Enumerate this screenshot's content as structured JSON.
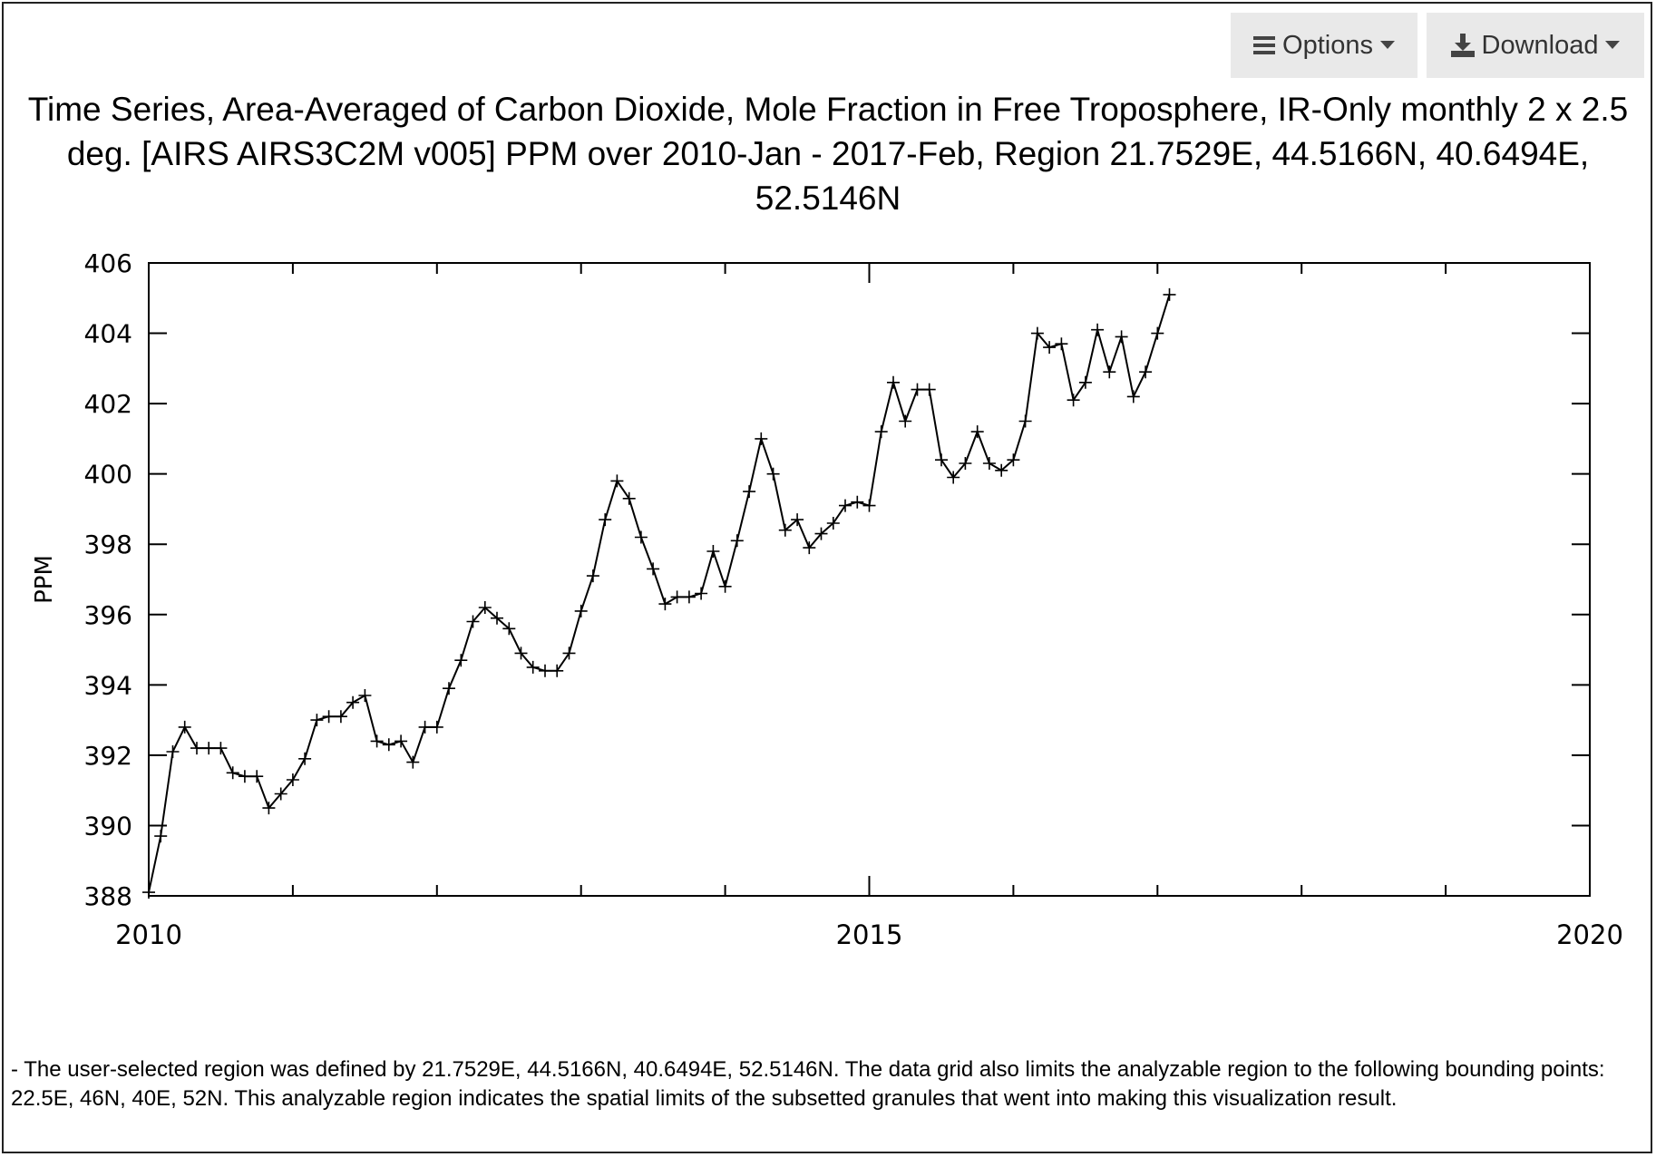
{
  "toolbar": {
    "options_label": "Options",
    "download_label": "Download",
    "options_icon": "menu-icon",
    "download_icon": "download-icon",
    "caret_icon": "caret-down-icon"
  },
  "chart_data": {
    "type": "line",
    "title": "Time Series, Area-Averaged of Carbon Dioxide, Mole Fraction in Free Troposphere, IR-Only monthly 2 x 2.5 deg. [AIRS AIRS3C2M v005] PPM over 2010-Jan - 2017-Feb, Region 21.7529E, 44.5166N, 40.6494E, 52.5146N",
    "xlabel": "",
    "ylabel": "PPM",
    "xlim": [
      2010,
      2020
    ],
    "ylim": [
      388,
      406
    ],
    "x_ticks": [
      2010,
      2015,
      2020
    ],
    "y_ticks": [
      388,
      390,
      392,
      394,
      396,
      398,
      400,
      402,
      404,
      406
    ],
    "grid": false,
    "marker": "plus",
    "line_color": "#000000",
    "series": [
      {
        "x": [
          "2010-01",
          "2010-02",
          "2010-03",
          "2010-04",
          "2010-05",
          "2010-06",
          "2010-07",
          "2010-08",
          "2010-09",
          "2010-10",
          "2010-11",
          "2010-12",
          "2011-01",
          "2011-02",
          "2011-03",
          "2011-04",
          "2011-05",
          "2011-06",
          "2011-07",
          "2011-08",
          "2011-09",
          "2011-10",
          "2011-11",
          "2011-12",
          "2012-01",
          "2012-02",
          "2012-03",
          "2012-04",
          "2012-05",
          "2012-06",
          "2012-07",
          "2012-08",
          "2012-09",
          "2012-10",
          "2012-11",
          "2012-12",
          "2013-01",
          "2013-02",
          "2013-03",
          "2013-04",
          "2013-05",
          "2013-06",
          "2013-07",
          "2013-08",
          "2013-09",
          "2013-10",
          "2013-11",
          "2013-12",
          "2014-01",
          "2014-02",
          "2014-03",
          "2014-04",
          "2014-05",
          "2014-06",
          "2014-07",
          "2014-08",
          "2014-09",
          "2014-10",
          "2014-11",
          "2014-12",
          "2015-01",
          "2015-02",
          "2015-03",
          "2015-04",
          "2015-05",
          "2015-06",
          "2015-07",
          "2015-08",
          "2015-09",
          "2015-10",
          "2015-11",
          "2015-12",
          "2016-01",
          "2016-02",
          "2016-03",
          "2016-04",
          "2016-05",
          "2016-06",
          "2016-07",
          "2016-08",
          "2016-09",
          "2016-10",
          "2016-11",
          "2016-12",
          "2017-01",
          "2017-02"
        ],
        "y": [
          388.1,
          389.7,
          392.1,
          392.8,
          392.2,
          392.2,
          392.2,
          391.5,
          391.4,
          391.4,
          390.5,
          390.9,
          391.3,
          391.9,
          393.0,
          393.1,
          393.1,
          393.5,
          393.7,
          392.4,
          392.3,
          392.4,
          391.8,
          392.8,
          392.8,
          393.9,
          394.7,
          395.8,
          396.2,
          395.9,
          395.6,
          394.9,
          394.5,
          394.4,
          394.4,
          394.9,
          396.1,
          397.1,
          398.7,
          399.8,
          399.3,
          398.2,
          397.3,
          396.3,
          396.5,
          396.5,
          396.6,
          397.8,
          396.8,
          398.1,
          399.5,
          401.0,
          400.0,
          398.4,
          398.7,
          397.9,
          398.3,
          398.6,
          399.1,
          399.2,
          399.1,
          401.2,
          402.6,
          401.5,
          402.4,
          402.4,
          400.4,
          399.9,
          400.3,
          401.2,
          400.3,
          400.1,
          400.4,
          401.5,
          404.0,
          403.6,
          403.7,
          402.1,
          402.6,
          404.1,
          402.9,
          403.9,
          402.2,
          402.9,
          404.0,
          405.1
        ]
      }
    ]
  },
  "caption": "- The user-selected region was defined by 21.7529E, 44.5166N, 40.6494E, 52.5146N. The data grid also limits the analyzable region to the following bounding points: 22.5E, 46N, 40E, 52N. This analyzable region indicates the spatial limits of the subsetted granules that went into making this visualization result."
}
